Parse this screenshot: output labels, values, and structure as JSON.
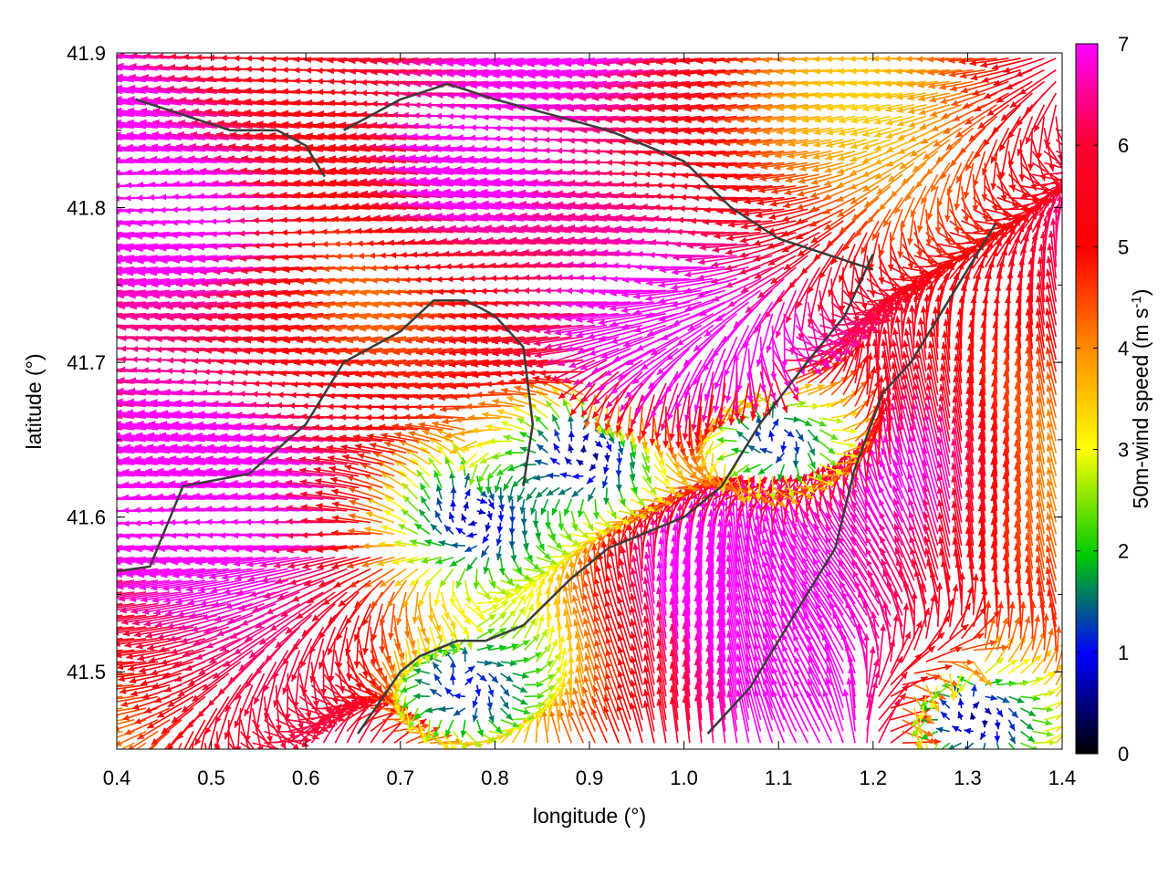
{
  "chart_data": {
    "type": "vector-field",
    "xlabel": "longitude (°)",
    "ylabel": "latitude (°)",
    "xlim": [
      0.4,
      1.4
    ],
    "ylim": [
      41.45,
      41.9
    ],
    "x_ticks": [
      "0.4",
      "0.5",
      "0.6",
      "0.7",
      "0.8",
      "0.9",
      "1.0",
      "1.1",
      "1.2",
      "1.3",
      "1.4"
    ],
    "y_ticks": [
      "41.5",
      "41.6",
      "41.7",
      "41.8",
      "41.9"
    ],
    "colorbar": {
      "label": "50m-wind speed (m s-1)",
      "label_main": "50m-wind speed (m s",
      "label_sup": "-1",
      "label_end": ")",
      "range": [
        0,
        7
      ],
      "ticks": [
        "0",
        "1",
        "2",
        "3",
        "4",
        "5",
        "6",
        "7"
      ],
      "palette": [
        "#000000",
        "#0000ff",
        "#00cc00",
        "#ffff00",
        "#ff8c00",
        "#ff0000",
        "#ff00ff"
      ]
    },
    "wind_field": {
      "predominant_direction": "westward",
      "low_wind_areas": [
        {
          "lon": 0.9,
          "lat": 41.64,
          "speed": 0.5
        },
        {
          "lon": 0.78,
          "lat": 41.6,
          "speed": 0.7
        },
        {
          "lon": 1.1,
          "lat": 41.65,
          "speed": 1.0
        },
        {
          "lon": 1.31,
          "lat": 41.47,
          "speed": 0.5
        },
        {
          "lon": 0.77,
          "lat": 41.49,
          "speed": 1.0
        }
      ],
      "strong_wind_areas": [
        {
          "lon": 0.5,
          "lat": 41.79,
          "speed": 7.5
        },
        {
          "lon": 1.05,
          "lat": 41.55,
          "speed": 8.0
        },
        {
          "lon": 1.22,
          "lat": 41.62,
          "speed": 7.5
        },
        {
          "lon": 0.8,
          "lat": 41.82,
          "speed": 7.5
        }
      ]
    },
    "boundary_lines": [
      [
        [
          0.4,
          41.565
        ],
        [
          0.435,
          41.568
        ],
        [
          0.47,
          41.62
        ],
        [
          0.54,
          41.628
        ],
        [
          0.6,
          41.66
        ],
        [
          0.64,
          41.7
        ],
        [
          0.7,
          41.72
        ],
        [
          0.735,
          41.74
        ],
        [
          0.77,
          41.74
        ],
        [
          0.8,
          41.73
        ],
        [
          0.83,
          41.71
        ],
        [
          0.84,
          41.66
        ],
        [
          0.83,
          41.62
        ]
      ],
      [
        [
          0.655,
          41.46
        ],
        [
          0.7,
          41.5
        ],
        [
          0.72,
          41.51
        ],
        [
          0.76,
          41.52
        ],
        [
          0.79,
          41.52
        ],
        [
          0.83,
          41.53
        ],
        [
          0.88,
          41.56
        ],
        [
          0.92,
          41.58
        ],
        [
          0.96,
          41.59
        ],
        [
          1.0,
          41.6
        ],
        [
          1.04,
          41.62
        ],
        [
          1.08,
          41.66
        ],
        [
          1.13,
          41.7
        ],
        [
          1.17,
          41.73
        ],
        [
          1.2,
          41.77
        ]
      ],
      [
        [
          1.025,
          41.46
        ],
        [
          1.07,
          41.49
        ],
        [
          1.12,
          41.54
        ],
        [
          1.16,
          41.58
        ],
        [
          1.18,
          41.63
        ],
        [
          1.21,
          41.68
        ],
        [
          1.24,
          41.7
        ],
        [
          1.27,
          41.73
        ],
        [
          1.3,
          41.76
        ],
        [
          1.33,
          41.79
        ]
      ],
      [
        [
          0.64,
          41.85
        ],
        [
          0.7,
          41.87
        ],
        [
          0.75,
          41.88
        ],
        [
          0.8,
          41.87
        ],
        [
          0.86,
          41.86
        ],
        [
          0.92,
          41.85
        ],
        [
          0.96,
          41.84
        ],
        [
          1.0,
          41.83
        ],
        [
          1.05,
          41.8
        ],
        [
          1.1,
          41.78
        ],
        [
          1.15,
          41.77
        ],
        [
          1.2,
          41.76
        ]
      ],
      [
        [
          0.42,
          41.87
        ],
        [
          0.47,
          41.86
        ],
        [
          0.52,
          41.85
        ],
        [
          0.57,
          41.85
        ],
        [
          0.6,
          41.84
        ],
        [
          0.62,
          41.82
        ]
      ]
    ]
  }
}
